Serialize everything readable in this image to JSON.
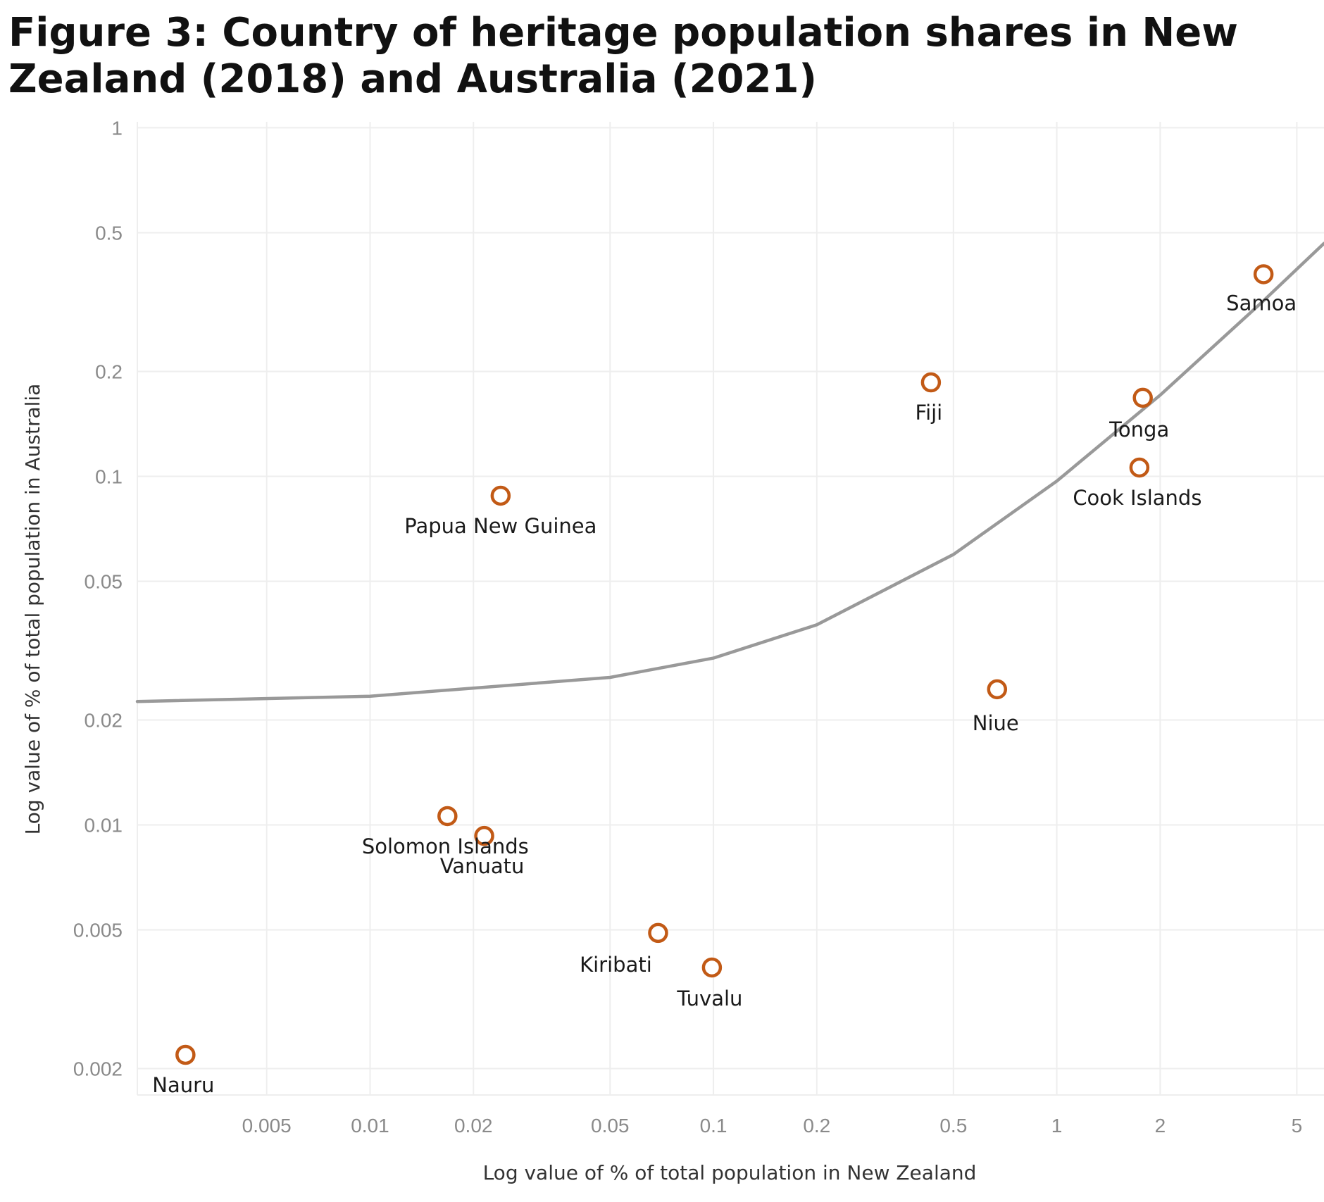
{
  "chart_data": {
    "type": "scatter",
    "title": "Figure 3: Country of heritage population shares in New Zealand (2018) and Australia (2021)",
    "xlabel": "Log value of % of total population in New Zealand",
    "ylabel": "Log value of % of total population in Australia",
    "x_scale": "log",
    "y_scale": "log",
    "xlim": [
      0.0021,
      6.0
    ],
    "ylim": [
      0.00168,
      1.04
    ],
    "xticks": [
      0.005,
      0.01,
      0.02,
      0.05,
      0.1,
      0.2,
      0.5,
      1,
      2,
      5
    ],
    "xtick_labels": [
      "0.005",
      "0.01",
      "0.02",
      "0.05",
      "0.1",
      "0.2",
      "0.5",
      "1",
      "2",
      "5"
    ],
    "yticks": [
      1,
      0.5,
      0.2,
      0.1,
      0.05,
      0.02,
      0.01,
      0.005,
      0.002
    ],
    "ytick_labels": [
      "1",
      "0.5",
      "0.2",
      "0.1",
      "0.05",
      "0.02",
      "0.01",
      "0.005",
      "0.002"
    ],
    "grid": true,
    "points": [
      {
        "name": "Samoa",
        "x": 4.0,
        "y": 0.38
      },
      {
        "name": "Fiji",
        "x": 0.43,
        "y": 0.186
      },
      {
        "name": "Tonga",
        "x": 1.78,
        "y": 0.168
      },
      {
        "name": "Cook Islands",
        "x": 1.74,
        "y": 0.106
      },
      {
        "name": "Papua New Guinea",
        "x": 0.024,
        "y": 0.088
      },
      {
        "name": "Niue",
        "x": 0.67,
        "y": 0.0245
      },
      {
        "name": "Solomon Islands",
        "x": 0.0168,
        "y": 0.0106
      },
      {
        "name": "Vanuatu",
        "x": 0.0215,
        "y": 0.0093
      },
      {
        "name": "Kiribati",
        "x": 0.069,
        "y": 0.0049
      },
      {
        "name": "Tuvalu",
        "x": 0.099,
        "y": 0.0039
      },
      {
        "name": "Nauru",
        "x": 0.0029,
        "y": 0.00219
      }
    ],
    "trend_line": {
      "type": "linear-fit-on-log-axes",
      "points": [
        {
          "x": 0.0021,
          "y": 0.0226
        },
        {
          "x": 0.01,
          "y": 0.0234
        },
        {
          "x": 0.05,
          "y": 0.0265
        },
        {
          "x": 0.1,
          "y": 0.0301
        },
        {
          "x": 0.2,
          "y": 0.0375
        },
        {
          "x": 0.5,
          "y": 0.0597
        },
        {
          "x": 1.0,
          "y": 0.0969
        },
        {
          "x": 2.0,
          "y": 0.171
        },
        {
          "x": 4.0,
          "y": 0.319
        },
        {
          "x": 6.0,
          "y": 0.466
        }
      ],
      "color": "#999999"
    },
    "colors": {
      "marker": "#c25a16",
      "grid": "#eeeeee",
      "tick_text": "#8a8a8a",
      "trend": "#999999"
    }
  }
}
